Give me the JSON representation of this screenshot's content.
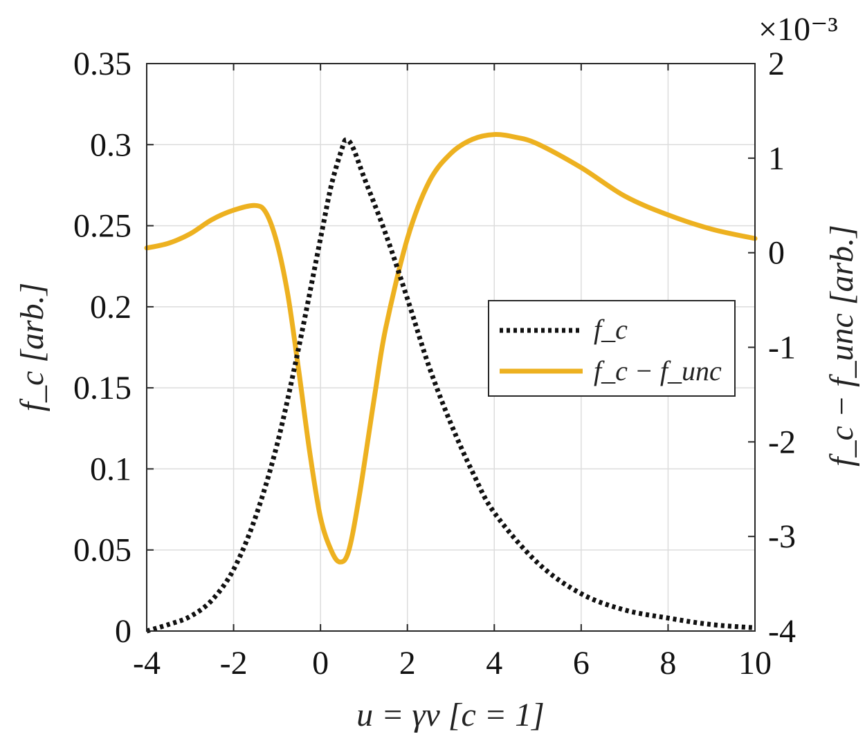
{
  "chart_data": {
    "type": "line",
    "xlabel": "u = γv [c = 1]",
    "ylabel_left": "f_c [arb.]",
    "ylabel_right": "f_c − f_unc [arb.]",
    "exponent_label": "×10⁻³",
    "xlim": [
      -4,
      10
    ],
    "ylim_left": [
      0,
      0.35
    ],
    "ylim_right": [
      -4,
      2
    ],
    "x_ticks": [
      -4,
      -2,
      0,
      2,
      4,
      6,
      8,
      10
    ],
    "x_tick_labels": [
      "-4",
      "-2",
      "0",
      "2",
      "4",
      "6",
      "8",
      "10"
    ],
    "y_left_ticks": [
      0,
      0.05,
      0.1,
      0.15,
      0.2,
      0.25,
      0.3,
      0.35
    ],
    "y_left_tick_labels": [
      "0",
      "0.05",
      "0.1",
      "0.15",
      "0.2",
      "0.25",
      "0.3",
      "0.35"
    ],
    "y_right_ticks": [
      -4,
      -3,
      -2,
      -1,
      0,
      1,
      2
    ],
    "y_right_tick_labels": [
      "-4",
      "-3",
      "-2",
      "-1",
      "0",
      "1",
      "2"
    ],
    "grid": true,
    "legend_position": "center-right",
    "series": [
      {
        "name": "f_c",
        "axis": "left",
        "style": "dotted",
        "color": "#111111",
        "x": [
          -4,
          -3.5,
          -3,
          -2.5,
          -2,
          -1.5,
          -1,
          -0.5,
          0,
          0.25,
          0.5,
          0.6,
          0.75,
          1,
          1.5,
          2,
          2.5,
          3,
          3.5,
          4,
          5,
          6,
          7,
          8,
          9,
          10
        ],
        "y": [
          0.0,
          0.004,
          0.009,
          0.019,
          0.038,
          0.07,
          0.115,
          0.175,
          0.242,
          0.275,
          0.298,
          0.303,
          0.298,
          0.28,
          0.245,
          0.205,
          0.163,
          0.128,
          0.098,
          0.073,
          0.042,
          0.023,
          0.013,
          0.008,
          0.004,
          0.002
        ]
      },
      {
        "name": "f_c − f_unc",
        "axis": "right",
        "style": "solid",
        "color": "#EDB120",
        "x": [
          -4,
          -3.5,
          -3,
          -2.5,
          -2,
          -1.5,
          -1.25,
          -1,
          -0.75,
          -0.5,
          -0.25,
          0,
          0.25,
          0.45,
          0.65,
          0.9,
          1.25,
          1.5,
          2,
          2.5,
          3,
          3.5,
          4,
          4.5,
          5,
          6,
          7,
          8,
          9,
          10
        ],
        "y": [
          0.05,
          0.1,
          0.2,
          0.35,
          0.45,
          0.5,
          0.42,
          0.1,
          -0.45,
          -1.25,
          -2.1,
          -2.8,
          -3.15,
          -3.27,
          -3.15,
          -2.55,
          -1.5,
          -0.8,
          0.15,
          0.75,
          1.05,
          1.2,
          1.25,
          1.22,
          1.15,
          0.9,
          0.6,
          0.4,
          0.25,
          0.15
        ]
      }
    ]
  }
}
